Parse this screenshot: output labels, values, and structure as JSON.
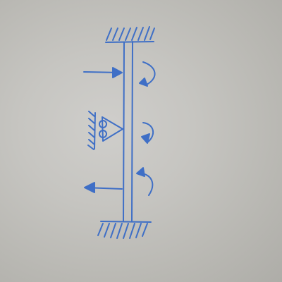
{
  "diagram": {
    "ink_color": "#3f6fc6",
    "paper_color": "#c6c5c1",
    "elements": [
      {
        "name": "top-fixed-support",
        "kind": "fixed-support"
      },
      {
        "name": "bottom-fixed-support",
        "kind": "fixed-support"
      },
      {
        "name": "vertical-beam",
        "kind": "beam"
      },
      {
        "name": "applied-force-right",
        "kind": "force-arrow",
        "direction": "right"
      },
      {
        "name": "applied-force-left",
        "kind": "force-arrow",
        "direction": "left"
      },
      {
        "name": "pin-roller-support",
        "kind": "roller-support"
      },
      {
        "name": "moment-arrow-upper",
        "kind": "moment-arrow",
        "sense": "clockwise"
      },
      {
        "name": "moment-arrow-middle",
        "kind": "moment-arrow",
        "sense": "clockwise"
      },
      {
        "name": "moment-arrow-lower",
        "kind": "moment-arrow",
        "sense": "clockwise"
      }
    ]
  }
}
